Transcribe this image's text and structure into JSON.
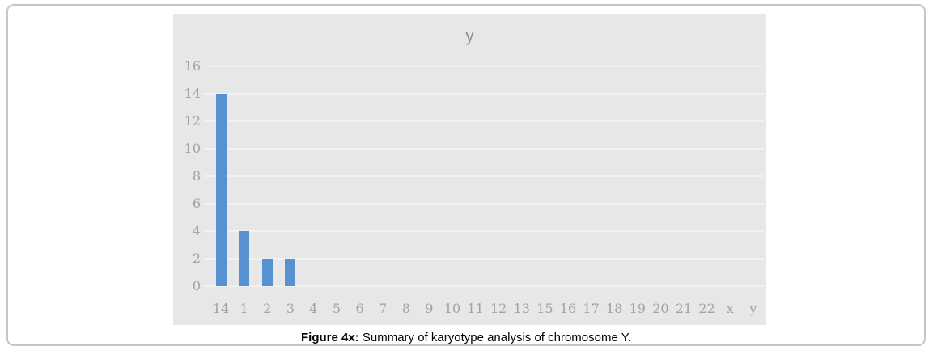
{
  "chart_data": {
    "type": "bar",
    "title": "y",
    "categories": [
      "14",
      "1",
      "2",
      "3",
      "4",
      "5",
      "6",
      "7",
      "8",
      "9",
      "10",
      "11",
      "12",
      "13",
      "15",
      "16",
      "17",
      "18",
      "19",
      "20",
      "21",
      "22",
      "x",
      "y"
    ],
    "values": [
      14,
      4,
      2,
      2,
      0,
      0,
      0,
      0,
      0,
      0,
      0,
      0,
      0,
      0,
      0,
      0,
      0,
      0,
      0,
      0,
      0,
      0,
      0,
      0
    ],
    "yticks": [
      0,
      2,
      4,
      6,
      8,
      10,
      12,
      14,
      16
    ],
    "ylim": [
      0,
      16
    ],
    "xlabel": "",
    "ylabel": "",
    "grid": true,
    "legend_position": "none",
    "bar_color": "#5791d1",
    "panel_bg": "#e8e7e7",
    "gridline_color": "#f2f1f1",
    "tick_color": "#a2a2a2",
    "title_color": "#8f8f8f"
  },
  "caption": {
    "prefix": "Figure 4x:",
    "text": " Summary of karyotype analysis of chromosome Y."
  }
}
